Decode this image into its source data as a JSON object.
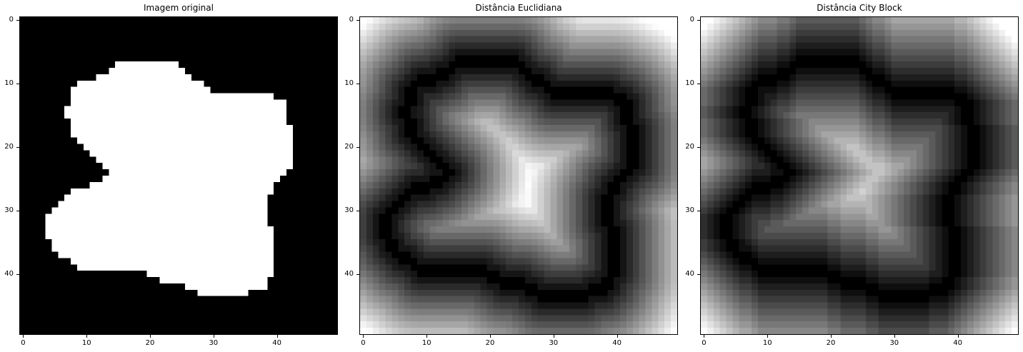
{
  "charts": [
    {
      "type": "heatmap",
      "title": "Imagem original",
      "colormap": "gray",
      "x_ticks": [
        "0",
        "10",
        "20",
        "30",
        "40"
      ],
      "y_ticks": [
        "0",
        "10",
        "20",
        "30",
        "40"
      ],
      "grid_size": 50,
      "cell_value_description": "binary mask"
    },
    {
      "type": "heatmap",
      "title": "Distância Euclidiana",
      "colormap": "gray",
      "x_ticks": [
        "0",
        "10",
        "20",
        "30",
        "40"
      ],
      "y_ticks": [
        "0",
        "10",
        "20",
        "30",
        "40"
      ],
      "grid_size": 50
    },
    {
      "type": "heatmap",
      "title": "Distância City Block",
      "colormap": "gray",
      "x_ticks": [
        "0",
        "10",
        "20",
        "30",
        "40"
      ],
      "y_ticks": [
        "0",
        "10",
        "20",
        "30",
        "40"
      ],
      "grid_size": 50
    }
  ],
  "chart_data": {
    "type": "heatmap",
    "grid_size": 50,
    "shape_rows": [
      [
        7,
        15,
        24
      ],
      [
        8,
        14,
        25
      ],
      [
        9,
        12,
        26
      ],
      [
        10,
        9,
        28
      ],
      [
        11,
        8,
        29
      ],
      [
        12,
        8,
        39
      ],
      [
        13,
        8,
        41
      ],
      [
        14,
        7,
        41
      ],
      [
        15,
        7,
        41
      ],
      [
        16,
        8,
        41
      ],
      [
        17,
        8,
        42
      ],
      [
        18,
        8,
        42
      ],
      [
        19,
        9,
        42
      ],
      [
        20,
        10,
        42
      ],
      [
        21,
        11,
        42
      ],
      [
        22,
        12,
        42
      ],
      [
        23,
        13,
        42
      ],
      [
        24,
        14,
        41
      ],
      [
        25,
        13,
        40
      ],
      [
        26,
        11,
        39
      ],
      [
        27,
        8,
        39
      ],
      [
        28,
        7,
        38
      ],
      [
        29,
        6,
        38
      ],
      [
        30,
        5,
        38
      ],
      [
        31,
        4,
        38
      ],
      [
        32,
        4,
        38
      ],
      [
        33,
        4,
        39
      ],
      [
        34,
        4,
        39
      ],
      [
        35,
        5,
        39
      ],
      [
        36,
        5,
        39
      ],
      [
        37,
        6,
        39
      ],
      [
        38,
        8,
        39
      ],
      [
        39,
        9,
        39
      ],
      [
        40,
        22,
        39
      ],
      [
        41,
        24,
        38
      ],
      [
        42,
        26,
        38
      ],
      [
        43,
        28,
        35
      ]
    ],
    "shape_rows_extra": [
      [
        38,
        9,
        16
      ],
      [
        39,
        9,
        16
      ],
      [
        40,
        20,
        22
      ],
      [
        41,
        22,
        24
      ]
    ],
    "series": [
      {
        "name": "Imagem original",
        "transform": "binary"
      },
      {
        "name": "Distância Euclidiana",
        "transform": "euclidean-distance-to-boundary"
      },
      {
        "name": "Distância City Block",
        "transform": "cityblock-distance-to-boundary"
      }
    ]
  }
}
